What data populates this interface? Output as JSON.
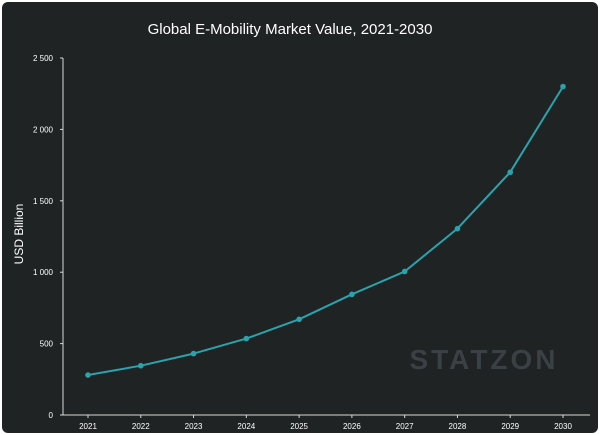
{
  "chart_data": {
    "type": "line",
    "title": "Global E-Mobility Market Value, 2021-2030",
    "xlabel": "",
    "ylabel": "USD Billion",
    "categories": [
      "2021",
      "2022",
      "2023",
      "2024",
      "2025",
      "2026",
      "2027",
      "2028",
      "2029",
      "2030"
    ],
    "series": [
      {
        "values": [
          280,
          345,
          430,
          535,
          670,
          845,
          1005,
          1305,
          1700,
          2300
        ]
      }
    ],
    "ylim": [
      0,
      2500
    ],
    "yticks": [
      0,
      500,
      1000,
      1500,
      2000,
      2500
    ],
    "ytick_labels": [
      "0",
      "500",
      "1 000",
      "1 500",
      "2 000",
      "2 500"
    ],
    "grid": false,
    "line_color": "#2aa3ad",
    "background": "#1f2324",
    "axis_color": "#d8d8d8"
  },
  "watermark": "STATZON"
}
